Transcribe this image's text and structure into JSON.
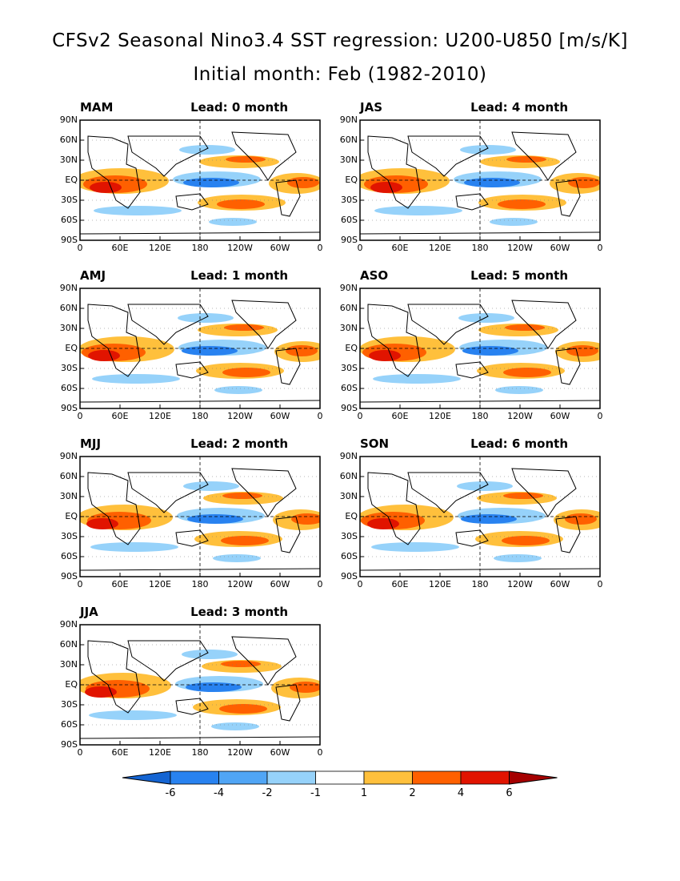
{
  "title": "CFSv2 Seasonal Nino3.4 SST regression: U200-U850 [m/s/K]",
  "subtitle": "Initial month: Feb (1982-2010)",
  "chart_data": {
    "type": "heatmap",
    "y_ticks": [
      "90N",
      "60N",
      "30N",
      "EQ",
      "30S",
      "60S",
      "90S"
    ],
    "x_ticks": [
      "0",
      "60E",
      "120E",
      "180",
      "120W",
      "60W",
      "0"
    ],
    "panels": [
      {
        "season": "MAM",
        "lead": "Lead: 0 month"
      },
      {
        "season": "AMJ",
        "lead": "Lead: 1 month"
      },
      {
        "season": "MJJ",
        "lead": "Lead: 2 month"
      },
      {
        "season": "JJA",
        "lead": "Lead: 3 month"
      },
      {
        "season": "JAS",
        "lead": "Lead: 4 month"
      },
      {
        "season": "ASO",
        "lead": "Lead: 5 month"
      },
      {
        "season": "SON",
        "lead": "Lead: 6 month"
      }
    ],
    "colorbar": {
      "levels": [
        "-6",
        "-4",
        "-2",
        "-1",
        "1",
        "2",
        "4",
        "6"
      ],
      "colors": [
        "#1464d2",
        "#2882f0",
        "#50a5f5",
        "#96d2fa",
        "#ffffff",
        "#ffc03c",
        "#ff6000",
        "#e11400",
        "#a50000"
      ]
    },
    "colors": {
      "cold": "#2882f0",
      "cool": "#96d2fa",
      "warm": "#ffc03c",
      "hot": "#ff6000",
      "hotter": "#e11400"
    }
  }
}
